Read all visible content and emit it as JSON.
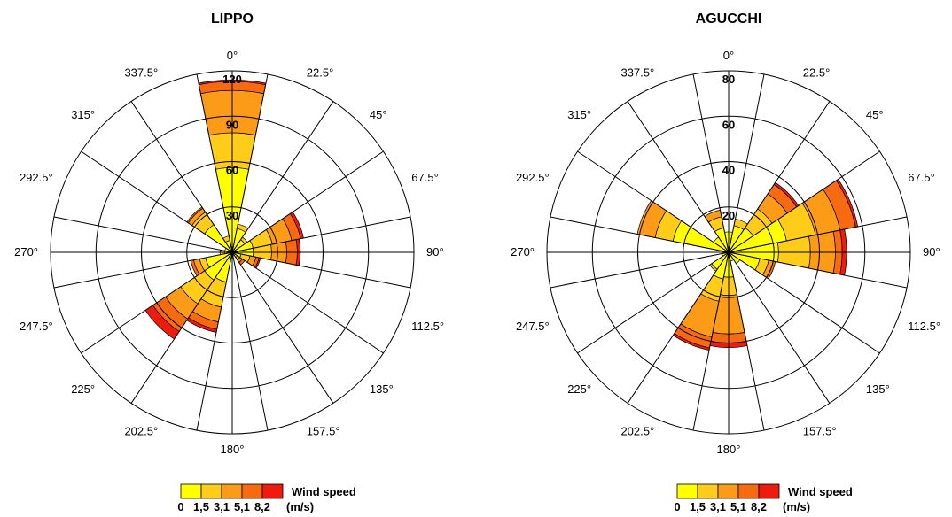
{
  "chart_data": [
    {
      "type": "polar-bar",
      "title": "LIPPO",
      "radial_ticks": [
        30,
        60,
        90,
        120
      ],
      "rmax": 120,
      "direction_labels": [
        "0°",
        "22.5°",
        "45°",
        "67.5°",
        "90°",
        "112.5°",
        "135°",
        "157.5°",
        "180°",
        "202.5°",
        "225°",
        "247.5°",
        "270°",
        "292.5°",
        "315°",
        "337.5°"
      ],
      "speed_bins": [
        "0-1,5",
        "1,5-3,1",
        "3,1-5,1",
        "5,1-8,2",
        ">8,2"
      ],
      "sectors": [
        {
          "dir": 0,
          "values": [
            56,
            23,
            28,
            6,
            1
          ]
        },
        {
          "dir": 22.5,
          "values": [
            16,
            3,
            0,
            0,
            0
          ]
        },
        {
          "dir": 45,
          "values": [
            10,
            2,
            0,
            0,
            0
          ]
        },
        {
          "dir": 67.5,
          "values": [
            14,
            13,
            13,
            6,
            2
          ]
        },
        {
          "dir": 90,
          "values": [
            14,
            12,
            10,
            7,
            2
          ]
        },
        {
          "dir": 112.5,
          "values": [
            6,
            6,
            4,
            2,
            1
          ]
        },
        {
          "dir": 135,
          "values": [
            4,
            2,
            2,
            2,
            0
          ]
        },
        {
          "dir": 157.5,
          "values": [
            2,
            0,
            0,
            0,
            0
          ]
        },
        {
          "dir": 180,
          "values": [
            3,
            0,
            0,
            0,
            0
          ]
        },
        {
          "dir": 202.5,
          "values": [
            20,
            17,
            10,
            5,
            2
          ]
        },
        {
          "dir": 225,
          "values": [
            22,
            19,
            12,
            10,
            6
          ]
        },
        {
          "dir": 247.5,
          "values": [
            18,
            4,
            4,
            2,
            0
          ]
        },
        {
          "dir": 270,
          "values": [
            5,
            3,
            0,
            0,
            0
          ]
        },
        {
          "dir": 292.5,
          "values": [
            5,
            0,
            0,
            0,
            0
          ]
        },
        {
          "dir": 315,
          "values": [
            22,
            10,
            3,
            1,
            0
          ]
        },
        {
          "dir": 337.5,
          "values": [
            8,
            3,
            0,
            0,
            0
          ]
        }
      ]
    },
    {
      "type": "polar-bar",
      "title": "AGUCCHI",
      "radial_ticks": [
        20,
        40,
        60,
        80
      ],
      "rmax": 80,
      "direction_labels": [
        "0°",
        "22.5°",
        "45°",
        "67.5°",
        "90°",
        "112.5°",
        "135°",
        "157.5°",
        "180°",
        "202.5°",
        "225°",
        "247.5°",
        "270°",
        "292.5°",
        "315°",
        "337.5°"
      ],
      "speed_bins": [
        "0-1,5",
        "1,5-3,1",
        "3,1-5,1",
        "5,1-8,2",
        ">8,2"
      ],
      "sectors": [
        {
          "dir": 0,
          "values": [
            9,
            0,
            0,
            0,
            0
          ]
        },
        {
          "dir": 22.5,
          "values": [
            12,
            3,
            0,
            0,
            0
          ]
        },
        {
          "dir": 45,
          "values": [
            13,
            10,
            8,
            5,
            1
          ]
        },
        {
          "dir": 67.5,
          "values": [
            26,
            13,
            11,
            7,
            1
          ]
        },
        {
          "dir": 90,
          "values": [
            22,
            14,
            11,
            3,
            2
          ]
        },
        {
          "dir": 112.5,
          "values": [
            14,
            4,
            2,
            1,
            0
          ]
        },
        {
          "dir": 135,
          "values": [
            6,
            0,
            0,
            0,
            0
          ]
        },
        {
          "dir": 157.5,
          "values": [
            4,
            0,
            0,
            0,
            0
          ]
        },
        {
          "dir": 180,
          "values": [
            11,
            8,
            17,
            4,
            2
          ]
        },
        {
          "dir": 202.5,
          "values": [
            12,
            10,
            16,
            5,
            1
          ]
        },
        {
          "dir": 225,
          "values": [
            9,
            1,
            0,
            0,
            0
          ]
        },
        {
          "dir": 247.5,
          "values": [
            3,
            0,
            0,
            0,
            0
          ]
        },
        {
          "dir": 270,
          "values": [
            3,
            0,
            0,
            0,
            0
          ]
        },
        {
          "dir": 292.5,
          "values": [
            25,
            8,
            8,
            0,
            0
          ]
        },
        {
          "dir": 315,
          "values": [
            8,
            0,
            0,
            0,
            0
          ]
        },
        {
          "dir": 337.5,
          "values": [
            11,
            5,
            3,
            0,
            0
          ]
        }
      ]
    }
  ],
  "legend": {
    "title": "Wind speed",
    "unit": "(m/s)",
    "ticks": [
      "0",
      "1,5",
      "3,1",
      "5,1",
      "8,2"
    ],
    "colors": [
      "#ffff00",
      "#ffcc1a",
      "#fb9b18",
      "#f66a12",
      "#ee1c0c"
    ]
  }
}
